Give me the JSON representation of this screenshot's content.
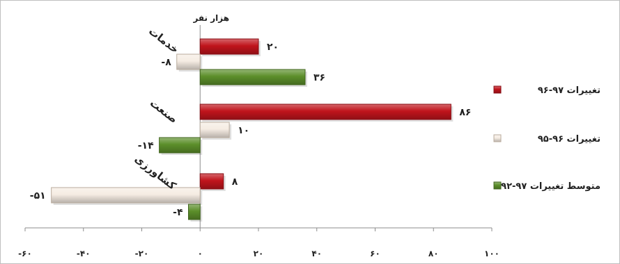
{
  "chart_data": {
    "type": "bar",
    "orientation": "horizontal",
    "unit_label": "هزار نفر",
    "categories": [
      "خدمات",
      "صنعت",
      "کشاورزی"
    ],
    "series": [
      {
        "name": "تغییرات ۹۷-۹۶",
        "color": "#c0141c",
        "values": [
          20,
          86,
          8
        ]
      },
      {
        "name": "تغییرات ۹۶-۹۵",
        "color": "#f5ece3",
        "values": [
          -8,
          10,
          -51
        ]
      },
      {
        "name": "متوسط تغییرات ۹۷-۹۲",
        "color": "#5c8f2a",
        "values": [
          36,
          -14,
          -4
        ]
      }
    ],
    "value_labels": [
      [
        "۲۰",
        "۸۶",
        "۸"
      ],
      [
        "-۸",
        "۱۰",
        "-۵۱"
      ],
      [
        "۳۶",
        "-۱۴",
        "-۴"
      ]
    ],
    "xlim": [
      -60,
      100
    ],
    "ticks": [
      -60,
      -40,
      -20,
      0,
      20,
      40,
      60,
      80,
      100
    ],
    "tick_labels": [
      "-۶۰",
      "-۴۰",
      "-۲۰",
      "۰",
      "۲۰",
      "۴۰",
      "۶۰",
      "۸۰",
      "۱۰۰"
    ],
    "legend_position": "right",
    "grid": false
  }
}
